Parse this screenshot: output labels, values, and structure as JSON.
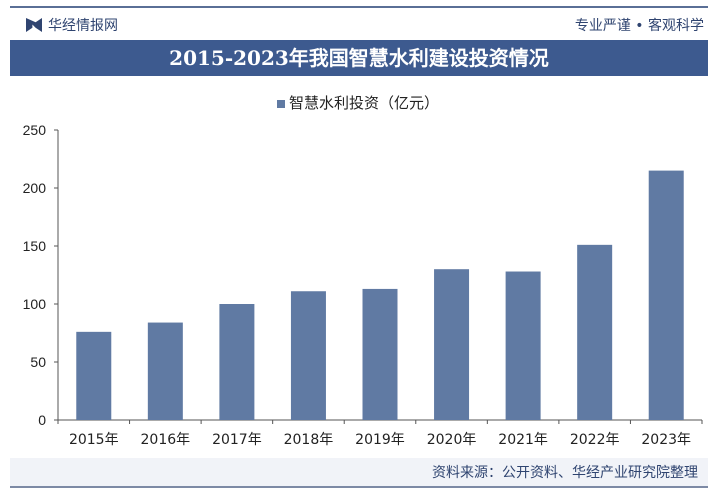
{
  "header": {
    "brand": "华经情报网",
    "slogan": "专业严谨 • 客观科学"
  },
  "footer": {
    "source": "资料来源：公开资料、华经产业研究院整理"
  },
  "chart_data": {
    "type": "bar",
    "title": "2015-2023年我国智慧水利建设投资情况",
    "categories": [
      "2015年",
      "2016年",
      "2017年",
      "2018年",
      "2019年",
      "2020年",
      "2021年",
      "2022年",
      "2023年"
    ],
    "series": [
      {
        "name": "智慧水利投资（亿元）",
        "values": [
          76,
          84,
          100,
          111,
          113,
          130,
          128,
          151,
          215
        ],
        "color": "#607aa3"
      }
    ],
    "ylim": [
      0,
      250
    ],
    "yticks": [
      0,
      50,
      100,
      150,
      200,
      250
    ],
    "grid": false,
    "legend": "top"
  }
}
